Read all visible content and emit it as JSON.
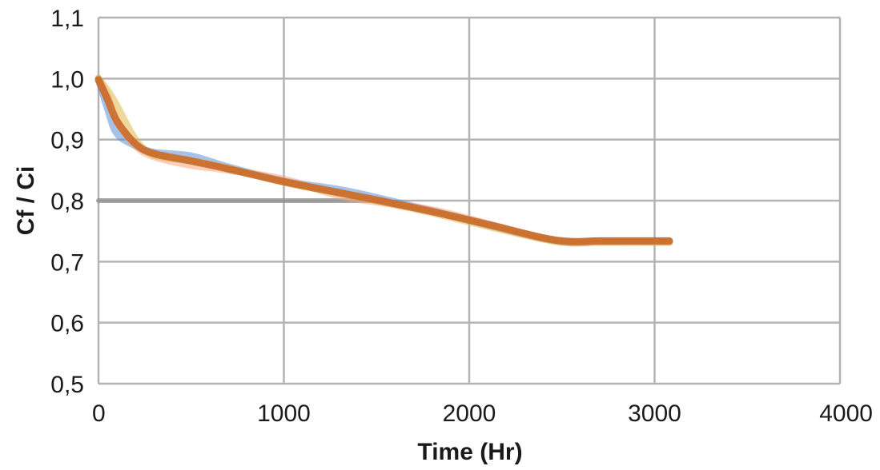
{
  "chart_data": {
    "type": "line",
    "title": "",
    "xlabel": "Time (Hr)",
    "ylabel": "Cf / Ci",
    "xlim": [
      0,
      4000
    ],
    "ylim": [
      0.5,
      1.1
    ],
    "xticks": [
      0,
      1000,
      2000,
      3000,
      4000
    ],
    "xtick_labels": [
      "0",
      "1000",
      "2000",
      "3000",
      "4000"
    ],
    "yticks": [
      0.5,
      0.6,
      0.7,
      0.8,
      0.9,
      1.0,
      1.1
    ],
    "ytick_labels": [
      "0,5",
      "0,6",
      "0,7",
      "0,8",
      "0,9",
      "1,0",
      "1,1"
    ],
    "grid": true,
    "legend": "none",
    "series": [
      {
        "color": "#8c8c8c",
        "x": [
          0,
          1550
        ],
        "y": [
          0.8,
          0.8
        ]
      },
      {
        "color": "#5b8fd6",
        "x": [
          0,
          50,
          100,
          200,
          300,
          500,
          700,
          1000,
          1300,
          1500,
          1800,
          2100,
          2400,
          2550,
          2700,
          3000,
          3080
        ],
        "y": [
          1.0,
          0.95,
          0.91,
          0.89,
          0.879,
          0.873,
          0.855,
          0.832,
          0.818,
          0.805,
          0.783,
          0.76,
          0.738,
          0.732,
          0.733,
          0.733,
          0.733
        ]
      },
      {
        "color": "#f4a582",
        "x": [
          0,
          50,
          100,
          200,
          300,
          500,
          700,
          1000,
          1300,
          1500,
          1800,
          2100,
          2400,
          2550,
          2700,
          3000,
          3080
        ],
        "y": [
          1.0,
          0.97,
          0.93,
          0.89,
          0.872,
          0.858,
          0.85,
          0.835,
          0.808,
          0.798,
          0.785,
          0.762,
          0.738,
          0.731,
          0.732,
          0.732,
          0.732
        ]
      },
      {
        "color": "#e0b84a",
        "x": [
          0,
          50,
          100,
          200,
          300,
          500,
          700,
          1000,
          1300,
          1500,
          1800,
          2100,
          2400,
          2550,
          2700,
          3000,
          3080
        ],
        "y": [
          1.0,
          0.98,
          0.955,
          0.9,
          0.875,
          0.865,
          0.853,
          0.83,
          0.812,
          0.8,
          0.78,
          0.758,
          0.737,
          0.731,
          0.732,
          0.732,
          0.732
        ]
      },
      {
        "color": "#c96a2a",
        "x": [
          0,
          50,
          100,
          200,
          300,
          500,
          700,
          1000,
          1300,
          1500,
          1800,
          2100,
          2400,
          2550,
          2700,
          3000,
          3080
        ],
        "y": [
          0.998,
          0.965,
          0.93,
          0.893,
          0.877,
          0.865,
          0.852,
          0.831,
          0.813,
          0.801,
          0.782,
          0.761,
          0.739,
          0.733,
          0.734,
          0.734,
          0.734
        ]
      }
    ]
  }
}
